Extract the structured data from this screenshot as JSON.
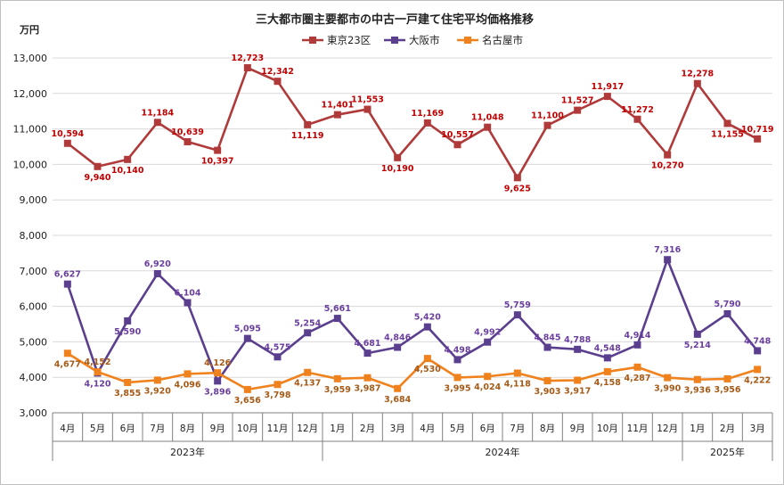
{
  "chart_data": {
    "type": "line",
    "title": "三大都市圏主要都市の中古一戸建て住宅平均価格推移",
    "ylabel": "万円",
    "ylim": [
      3000,
      13000
    ],
    "ytick_step": 1000,
    "grid": true,
    "legend_position": "top",
    "categories": [
      "4月",
      "5月",
      "6月",
      "7月",
      "8月",
      "9月",
      "10月",
      "11月",
      "12月",
      "1月",
      "2月",
      "3月",
      "4月",
      "5月",
      "6月",
      "7月",
      "8月",
      "9月",
      "10月",
      "11月",
      "12月",
      "1月",
      "2月",
      "3月"
    ],
    "year_groups": [
      {
        "label": "2023年",
        "start": 0,
        "end": 8
      },
      {
        "label": "2024年",
        "start": 9,
        "end": 20
      },
      {
        "label": "2025年",
        "start": 21,
        "end": 23
      }
    ],
    "series": [
      {
        "name": "東京23区",
        "color": "#b03a3a",
        "label_color": "#c00000",
        "values": [
          10594,
          9940,
          10140,
          11184,
          10639,
          10397,
          12723,
          12342,
          11119,
          11401,
          11553,
          10190,
          11169,
          10557,
          11048,
          9625,
          11100,
          11527,
          11917,
          11272,
          10270,
          12278,
          11155,
          10719
        ],
        "label_pos": [
          "above",
          "below",
          "below",
          "above",
          "above",
          "below",
          "above",
          "above",
          "below",
          "above",
          "above",
          "below",
          "above",
          "above",
          "above",
          "below",
          "above",
          "above",
          "above",
          "above",
          "below",
          "above",
          "below",
          "above"
        ]
      },
      {
        "name": "大阪市",
        "color": "#5b3f8f",
        "label_color": "#6a3fa0",
        "values": [
          6627,
          4120,
          5590,
          6920,
          6104,
          3896,
          5095,
          4575,
          5254,
          5661,
          4681,
          4846,
          5420,
          4498,
          4992,
          5759,
          4845,
          4788,
          4548,
          4914,
          7316,
          5214,
          5790,
          4748
        ],
        "label_pos": [
          "above",
          "below",
          "below",
          "above",
          "above",
          "below",
          "above",
          "above",
          "above",
          "above",
          "above",
          "above",
          "above",
          "above",
          "above",
          "above",
          "above",
          "above",
          "above",
          "above",
          "above",
          "below",
          "above",
          "above"
        ]
      },
      {
        "name": "名古屋市",
        "color": "#f0821e",
        "label_color": "#a65a16",
        "values": [
          4677,
          4152,
          3855,
          3920,
          4096,
          4126,
          3656,
          3798,
          4137,
          3959,
          3987,
          3684,
          4530,
          3995,
          4024,
          4118,
          3903,
          3917,
          4158,
          4287,
          3990,
          3936,
          3956,
          4222
        ],
        "label_pos": [
          "below",
          "above",
          "below",
          "below",
          "below",
          "above",
          "below",
          "below",
          "below",
          "below",
          "below",
          "below",
          "below",
          "below",
          "below",
          "below",
          "below",
          "below",
          "below",
          "below",
          "below",
          "below",
          "below",
          "below"
        ]
      }
    ]
  }
}
